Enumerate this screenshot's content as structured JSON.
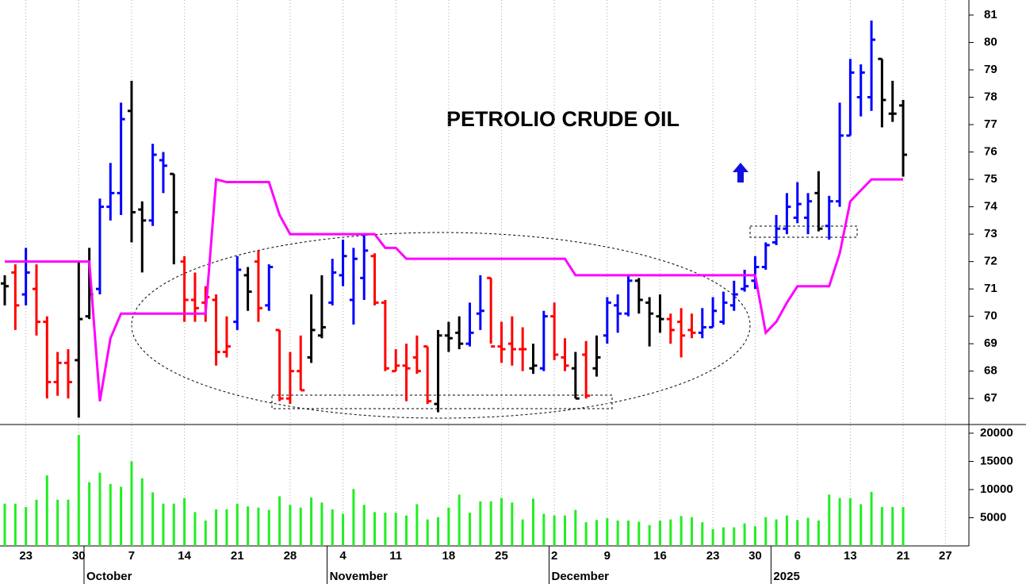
{
  "chart_data": [
    {
      "type": "ohlc",
      "title": "PETROLIO CRUDE OIL",
      "open": [
        71.2,
        71.6,
        70.8,
        71.0,
        69.8,
        67.6,
        68.3,
        68.4,
        70.0,
        71.0,
        74.0,
        74.5,
        77.5,
        73.9,
        73.5,
        75.7,
        75.2,
        72.0,
        70.6,
        70.5,
        70.6,
        68.7,
        69.8,
        71.5,
        72.0,
        70.4,
        69.5,
        67.0,
        68.0,
        68.5,
        69.3,
        70.5,
        71.5,
        70.6,
        71.4,
        72.2,
        70.5,
        68.0,
        68.2,
        68.5,
        68.9,
        66.8,
        69.3,
        69.4,
        69.0,
        70.1,
        71.4,
        68.9,
        69.0,
        68.8,
        68.1,
        68.1,
        70.0,
        68.5,
        68.1,
        68.6,
        68.1,
        69.3,
        70.4,
        70.1,
        71.3,
        70.5,
        70.0,
        69.9,
        69.8,
        69.5,
        69.4,
        69.6,
        69.8,
        70.4,
        71.0,
        71.3,
        71.8,
        72.7,
        73.2,
        73.6,
        73.6,
        74.5,
        73.3,
        74.2,
        76.6,
        78.0,
        78.0,
        79.4,
        77.4,
        77.7
      ],
      "high": [
        71.5,
        71.9,
        72.5,
        71.9,
        70.0,
        68.7,
        68.8,
        72.0,
        72.5,
        74.3,
        75.6,
        77.8,
        78.6,
        74.2,
        76.3,
        76.0,
        75.2,
        72.2,
        71.6,
        71.1,
        70.8,
        70.0,
        72.2,
        71.8,
        72.4,
        71.9,
        69.5,
        68.7,
        69.3,
        70.8,
        71.5,
        72.1,
        72.8,
        72.5,
        73.0,
        72.3,
        70.6,
        68.8,
        69.0,
        69.3,
        68.9,
        69.5,
        69.8,
        70.0,
        70.5,
        71.5,
        71.4,
        69.8,
        70.0,
        69.6,
        69.0,
        70.2,
        70.5,
        69.2,
        68.7,
        69.1,
        69.3,
        70.7,
        70.8,
        71.5,
        71.4,
        70.7,
        70.8,
        70.1,
        70.3,
        70.1,
        70.3,
        70.7,
        70.9,
        71.3,
        71.7,
        72.2,
        72.7,
        73.7,
        74.5,
        74.9,
        74.5,
        75.3,
        74.4,
        77.8,
        79.4,
        79.2,
        80.8,
        79.4,
        78.6,
        77.9
      ],
      "low": [
        70.4,
        69.5,
        70.4,
        69.3,
        67.0,
        67.1,
        67.0,
        66.3,
        69.9,
        70.8,
        73.5,
        73.7,
        72.7,
        71.6,
        73.3,
        74.5,
        71.9,
        69.8,
        69.8,
        69.8,
        68.2,
        68.5,
        69.5,
        70.2,
        69.8,
        70.2,
        66.9,
        66.8,
        67.3,
        68.3,
        69.2,
        70.4,
        71.1,
        69.7,
        70.6,
        70.4,
        68.0,
        68.0,
        66.9,
        67.9,
        66.8,
        66.5,
        68.7,
        68.8,
        68.9,
        69.5,
        69.0,
        68.3,
        68.2,
        68.0,
        67.9,
        68.0,
        68.4,
        68.0,
        67.0,
        67.0,
        67.8,
        69.0,
        69.4,
        70.0,
        70.1,
        68.9,
        69.4,
        69.0,
        68.5,
        69.2,
        69.2,
        69.6,
        69.7,
        70.2,
        70.9,
        71.0,
        71.7,
        72.6,
        73.0,
        73.4,
        73.0,
        73.1,
        72.8,
        74.0,
        76.6,
        77.3,
        77.5,
        76.9,
        77.1,
        75.1
      ],
      "close": [
        71.1,
        70.4,
        71.6,
        69.8,
        67.6,
        68.3,
        67.6,
        69.9,
        70.8,
        74.0,
        74.5,
        77.2,
        73.8,
        73.5,
        75.9,
        75.5,
        73.8,
        70.6,
        70.3,
        70.7,
        68.7,
        68.9,
        71.7,
        70.9,
        70.3,
        71.8,
        67.0,
        68.0,
        67.3,
        69.5,
        69.6,
        71.6,
        72.2,
        72.1,
        72.4,
        70.5,
        68.1,
        68.2,
        68.1,
        68.0,
        66.9,
        69.3,
        69.2,
        69.0,
        69.4,
        70.2,
        68.9,
        68.8,
        68.8,
        68.8,
        68.2,
        70.0,
        68.6,
        68.2,
        67.0,
        67.1,
        68.5,
        70.5,
        70.1,
        71.3,
        70.6,
        70.1,
        69.9,
        69.5,
        69.3,
        69.4,
        69.6,
        70.2,
        70.5,
        70.8,
        71.1,
        71.8,
        72.6,
        73.2,
        74.0,
        74.1,
        74.2,
        73.2,
        74.2,
        76.6,
        78.9,
        78.9,
        80.1,
        77.9,
        77.4,
        75.9
      ],
      "bar_colors": [
        "black",
        "red",
        "blue",
        "red",
        "red",
        "red",
        "red",
        "black",
        "black",
        "blue",
        "blue",
        "blue",
        "black",
        "black",
        "blue",
        "blue",
        "black",
        "red",
        "red",
        "red",
        "red",
        "red",
        "blue",
        "black",
        "red",
        "blue",
        "red",
        "red",
        "red",
        "black",
        "black",
        "blue",
        "blue",
        "blue",
        "blue",
        "red",
        "red",
        "red",
        "red",
        "red",
        "red",
        "black",
        "black",
        "black",
        "blue",
        "blue",
        "red",
        "red",
        "red",
        "red",
        "black",
        "blue",
        "red",
        "red",
        "black",
        "red",
        "black",
        "blue",
        "blue",
        "blue",
        "black",
        "black",
        "black",
        "red",
        "red",
        "red",
        "blue",
        "blue",
        "blue",
        "blue",
        "blue",
        "blue",
        "blue",
        "blue",
        "blue",
        "blue",
        "blue",
        "black",
        "blue",
        "blue",
        "blue",
        "blue",
        "blue",
        "black",
        "black",
        "black"
      ],
      "line": {
        "color": "#ff00ff",
        "values": [
          72.0,
          72.0,
          72.0,
          72.0,
          72.0,
          72.0,
          72.0,
          72.0,
          72.0,
          66.9,
          69.2,
          70.1,
          70.1,
          70.1,
          70.1,
          70.1,
          70.1,
          70.1,
          70.1,
          70.1,
          75.0,
          74.9,
          74.9,
          74.9,
          74.9,
          74.9,
          73.7,
          73.0,
          73.0,
          73.0,
          73.0,
          73.0,
          73.0,
          73.0,
          73.0,
          73.0,
          72.5,
          72.5,
          72.1,
          72.1,
          72.1,
          72.1,
          72.1,
          72.1,
          72.1,
          72.1,
          72.1,
          72.1,
          72.1,
          72.1,
          72.1,
          72.1,
          72.1,
          72.1,
          71.5,
          71.5,
          71.5,
          71.5,
          71.5,
          71.5,
          71.5,
          71.5,
          71.5,
          71.5,
          71.5,
          71.5,
          71.5,
          71.5,
          71.5,
          71.5,
          71.5,
          71.5,
          69.4,
          69.8,
          70.5,
          71.1,
          71.1,
          71.1,
          71.1,
          72.3,
          74.2,
          74.6,
          75.0,
          75.0,
          75.0,
          75.0
        ]
      },
      "ylim": [
        66.05,
        81.55
      ],
      "yticks": [
        67,
        68,
        69,
        70,
        71,
        72,
        73,
        74,
        75,
        76,
        77,
        78,
        79,
        80,
        81
      ]
    },
    {
      "type": "bar",
      "categories": [
        null,
        null,
        "23",
        null,
        null,
        null,
        null,
        "30",
        null,
        null,
        null,
        null,
        "7",
        null,
        null,
        null,
        null,
        "14",
        null,
        null,
        null,
        null,
        "21",
        null,
        null,
        null,
        null,
        "28",
        null,
        null,
        null,
        null,
        "4",
        null,
        null,
        null,
        null,
        "11",
        null,
        null,
        null,
        null,
        "18",
        null,
        null,
        null,
        null,
        "25",
        null,
        null,
        null,
        null,
        "2",
        null,
        null,
        null,
        null,
        "9",
        null,
        null,
        null,
        null,
        "16",
        null,
        null,
        null,
        null,
        "23",
        null,
        null,
        null,
        "30",
        null,
        null,
        null,
        "6",
        null,
        null,
        null,
        null,
        "13",
        null,
        null,
        null,
        null,
        "21",
        null,
        null,
        null,
        "27",
        null
      ],
      "months": [
        null,
        null,
        null,
        null,
        null,
        null,
        null,
        null,
        "October",
        null,
        null,
        null,
        null,
        null,
        null,
        null,
        null,
        null,
        null,
        null,
        null,
        null,
        null,
        null,
        null,
        null,
        null,
        null,
        null,
        null,
        null,
        "November",
        null,
        null,
        null,
        null,
        null,
        null,
        null,
        null,
        null,
        null,
        null,
        null,
        null,
        null,
        null,
        null,
        null,
        null,
        null,
        null,
        "December",
        null,
        null,
        null,
        null,
        null,
        null,
        null,
        null,
        null,
        null,
        null,
        null,
        null,
        null,
        null,
        null,
        null,
        null,
        null,
        null,
        "2025",
        null,
        null,
        null,
        null,
        null,
        null,
        null,
        null,
        null,
        null,
        null,
        null,
        null,
        null,
        null,
        null,
        null
      ],
      "values": [
        7500,
        7500,
        6900,
        8200,
        12500,
        8200,
        8200,
        19700,
        11300,
        13000,
        11000,
        10500,
        15000,
        12000,
        9500,
        7500,
        7500,
        8500,
        6000,
        4500,
        6500,
        6500,
        7500,
        7000,
        6800,
        6400,
        8800,
        7300,
        6800,
        8600,
        7700,
        6500,
        5700,
        10100,
        7300,
        6000,
        5900,
        5900,
        5400,
        7400,
        4700,
        5100,
        6800,
        9100,
        5900,
        7900,
        7900,
        8500,
        7700,
        4700,
        8400,
        5700,
        5400,
        5400,
        6400,
        4200,
        4600,
        4900,
        4500,
        4500,
        4300,
        3700,
        4500,
        4700,
        5300,
        5100,
        4200,
        3000,
        3300,
        3300,
        4000,
        3500,
        5100,
        4700,
        5400,
        4600,
        5000,
        4500,
        9100,
        8500,
        8500,
        7400,
        9600,
        6900,
        6900,
        6900,
        null,
        null,
        null,
        null,
        null
      ],
      "color": "#22ee22",
      "ylim": [
        0,
        21260
      ],
      "yticks": [
        5000,
        10000,
        15000,
        20000
      ]
    }
  ]
}
